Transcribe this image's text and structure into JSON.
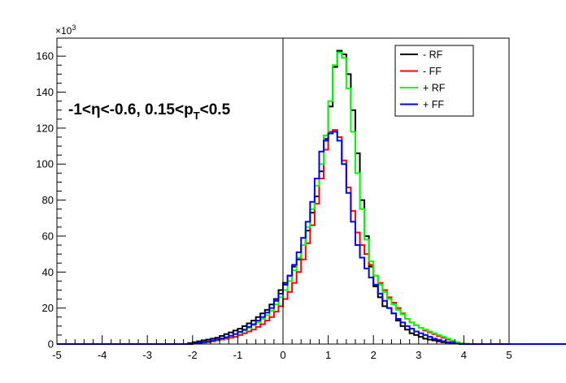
{
  "chart_data": {
    "type": "line",
    "title": "",
    "xlabel": "",
    "ylabel": "",
    "xlim": [
      -5,
      5
    ],
    "ylim": [
      0,
      170
    ],
    "y_multiplier_label": "×10",
    "y_multiplier_exponent": "3",
    "x_ticks": [
      -5,
      -4,
      -3,
      -2,
      -1,
      0,
      1,
      2,
      3,
      4,
      5
    ],
    "x_tick_labels": [
      "-5",
      "-4",
      "-3",
      "-2",
      "-1",
      "0",
      "1",
      "2",
      "3",
      "4",
      "5"
    ],
    "y_ticks": [
      0,
      20,
      40,
      60,
      80,
      100,
      120,
      140,
      160
    ],
    "y_tick_labels": [
      "0",
      "20",
      "40",
      "60",
      "80",
      "100",
      "120",
      "140",
      "160"
    ],
    "grid": false,
    "legend_position": "top-right",
    "annotation": {
      "prefix": "-1<",
      "eta": "η",
      "middle": "<-0.6, 0.15<p",
      "subscript": "T",
      "suffix": "<0.5"
    },
    "bin_edges_start": -5,
    "bin_width": 0.1,
    "series": [
      {
        "name": "- RF",
        "color": "#000000",
        "values": [
          0,
          0,
          0,
          0,
          0,
          0,
          0,
          0,
          0,
          0,
          0,
          0,
          0,
          0,
          0,
          0,
          0,
          0,
          0,
          0,
          0,
          0,
          0,
          0,
          0,
          0,
          0,
          0,
          0,
          0.5,
          1,
          1.5,
          2,
          2.5,
          3,
          3.5,
          4.5,
          5.5,
          6.5,
          7.5,
          8.5,
          10,
          11.5,
          13,
          15,
          17,
          19,
          22,
          25,
          30,
          34,
          38,
          43,
          47,
          55,
          63,
          73,
          82,
          96,
          114,
          132,
          154,
          163,
          161,
          150,
          130,
          106,
          80,
          60,
          43,
          32,
          26,
          21,
          20,
          17,
          13,
          10,
          8,
          6,
          5,
          4,
          3,
          2.5,
          2,
          1.5,
          1,
          0.8,
          0.6,
          0.4,
          0.2,
          0.1,
          0,
          0,
          0,
          0,
          0,
          0,
          0,
          0,
          0,
          0,
          0,
          0,
          0,
          0,
          0,
          0,
          0,
          0,
          0,
          0,
          0,
          0,
          0,
          0,
          0,
          0,
          0,
          0,
          0,
          0,
          0,
          0,
          0,
          0,
          0,
          0,
          0,
          0,
          0,
          0,
          0,
          0,
          0,
          0,
          0,
          0,
          0,
          0,
          0,
          0,
          0,
          0,
          0,
          0,
          0,
          0,
          0,
          0,
          0,
          0,
          0,
          0,
          0,
          0,
          0,
          0,
          0,
          0,
          0,
          0,
          0,
          0,
          0,
          0,
          0,
          0,
          0,
          0,
          0,
          0,
          0,
          0,
          0,
          0,
          0,
          0,
          0,
          0,
          0,
          0,
          0,
          0,
          0,
          0,
          0,
          0,
          0,
          0,
          0,
          0,
          0,
          0
        ]
      },
      {
        "name": "- FF",
        "color": "#ff0000",
        "values": [
          0,
          0,
          0,
          0,
          0,
          0,
          0,
          0,
          0,
          0,
          0,
          0,
          0,
          0,
          0,
          0,
          0,
          0,
          0,
          0,
          0,
          0,
          0,
          0,
          0,
          0,
          0,
          0,
          0,
          0,
          0.3,
          0.5,
          0.8,
          1,
          1.5,
          2,
          2.5,
          3,
          3.5,
          4,
          5,
          6,
          7,
          8,
          9.5,
          11,
          13,
          15,
          18,
          21,
          25,
          29,
          34,
          40,
          47,
          56,
          66,
          78,
          92,
          108,
          118,
          119,
          115,
          102,
          87,
          74,
          62,
          55,
          50,
          44,
          38,
          34,
          30,
          26,
          23,
          20,
          17,
          14,
          12,
          10.5,
          9,
          7.5,
          6.5,
          5.5,
          4.5,
          3.5,
          2.5,
          1.5,
          1,
          0.5,
          0.2,
          0,
          0,
          0,
          0,
          0,
          0,
          0,
          0,
          0,
          0,
          0,
          0,
          0,
          0,
          0,
          0,
          0,
          0,
          0,
          0,
          0,
          0,
          0,
          0,
          0,
          0,
          0,
          0,
          0,
          0,
          0,
          0,
          0,
          0,
          0,
          0,
          0,
          0,
          0,
          0,
          0,
          0,
          0,
          0,
          0,
          0,
          0,
          0,
          0,
          0,
          0,
          0,
          0,
          0,
          0,
          0,
          0,
          0,
          0,
          0,
          0,
          0,
          0,
          0,
          0,
          0,
          0,
          0,
          0,
          0,
          0,
          0,
          0,
          0,
          0,
          0,
          0,
          0,
          0,
          0,
          0,
          0,
          0,
          0,
          0,
          0,
          0,
          0,
          0,
          0,
          0,
          0,
          0,
          0,
          0,
          0,
          0
        ]
      },
      {
        "name": "+ RF",
        "color": "#00ff00",
        "values": [
          0,
          0,
          0,
          0,
          0,
          0,
          0,
          0,
          0,
          0,
          0,
          0,
          0,
          0,
          0,
          0,
          0,
          0,
          0,
          0,
          0,
          0,
          0,
          0,
          0,
          0,
          0,
          0,
          0,
          0,
          0.3,
          0.6,
          0.9,
          1.3,
          1.8,
          2.3,
          3,
          3.8,
          4.6,
          5.5,
          6.5,
          7.5,
          9,
          10.5,
          12,
          14,
          16,
          18.5,
          22,
          26,
          30,
          35,
          41,
          48,
          55,
          65,
          75,
          88,
          100,
          116,
          135,
          155,
          162,
          159,
          142,
          118,
          95,
          75,
          58,
          46,
          38,
          33,
          29,
          25,
          22,
          19,
          16.5,
          14,
          12,
          10.5,
          9,
          8,
          7,
          6,
          5,
          4,
          3,
          2,
          1,
          0.5,
          0.2,
          0,
          0,
          0,
          0,
          0,
          0,
          0,
          0,
          0,
          0,
          0,
          0,
          0,
          0,
          0,
          0,
          0,
          0,
          0,
          0,
          0,
          0,
          0,
          0,
          0,
          0,
          0,
          0,
          0,
          0,
          0,
          0,
          0,
          0,
          0,
          0,
          0,
          0,
          0,
          0,
          0,
          0,
          0,
          0,
          0,
          0,
          0,
          0,
          0,
          0,
          0,
          0,
          0,
          0,
          0,
          0,
          0,
          0,
          0,
          0,
          0,
          0,
          0,
          0,
          0,
          0,
          0,
          0,
          0,
          0,
          0,
          0,
          0,
          0,
          0,
          0,
          0,
          0,
          0,
          0,
          0,
          0,
          0,
          0,
          0,
          0,
          0,
          0,
          0,
          0,
          0,
          0,
          0,
          0
        ]
      },
      {
        "name": "+ FF",
        "color": "#0000ff",
        "values": [
          0,
          0,
          0,
          0,
          0,
          0,
          0,
          0,
          0,
          0,
          0,
          0,
          0,
          0,
          0,
          0,
          0,
          0,
          0,
          0,
          0,
          0,
          0,
          0,
          0,
          0,
          0,
          0,
          0,
          0,
          0.3,
          0.6,
          1,
          1.4,
          1.9,
          2.5,
          3.1,
          3.8,
          4.6,
          5.6,
          6.8,
          8,
          9.5,
          11,
          13,
          15,
          17.5,
          20,
          24,
          28,
          33,
          38,
          44,
          51,
          59,
          68,
          79,
          92,
          107,
          113,
          117,
          118,
          113,
          100,
          84,
          68,
          55,
          48,
          42,
          37,
          33,
          28,
          24,
          20,
          17,
          14,
          12,
          10,
          8.5,
          7,
          6,
          5,
          4,
          3,
          2.3,
          1.6,
          1,
          0.6,
          0.3,
          0,
          0,
          0,
          0,
          0,
          0,
          0,
          0,
          0,
          0,
          0,
          0,
          0,
          0,
          0,
          0,
          0,
          0,
          0,
          0,
          0,
          0,
          0,
          0,
          0,
          0,
          0,
          0,
          0,
          0,
          0,
          0,
          0,
          0,
          0,
          0,
          0,
          0,
          0,
          0,
          0,
          0,
          0,
          0,
          0,
          0,
          0,
          0,
          0,
          0,
          0,
          0,
          0,
          0,
          0,
          0,
          0,
          0,
          0,
          0,
          0,
          0,
          0,
          0,
          0,
          0,
          0,
          0,
          0,
          0,
          0,
          0,
          0,
          0,
          0,
          0,
          0,
          0,
          0,
          0,
          0,
          0,
          0,
          0,
          0,
          0,
          0,
          0,
          0,
          0,
          0
        ]
      }
    ]
  }
}
